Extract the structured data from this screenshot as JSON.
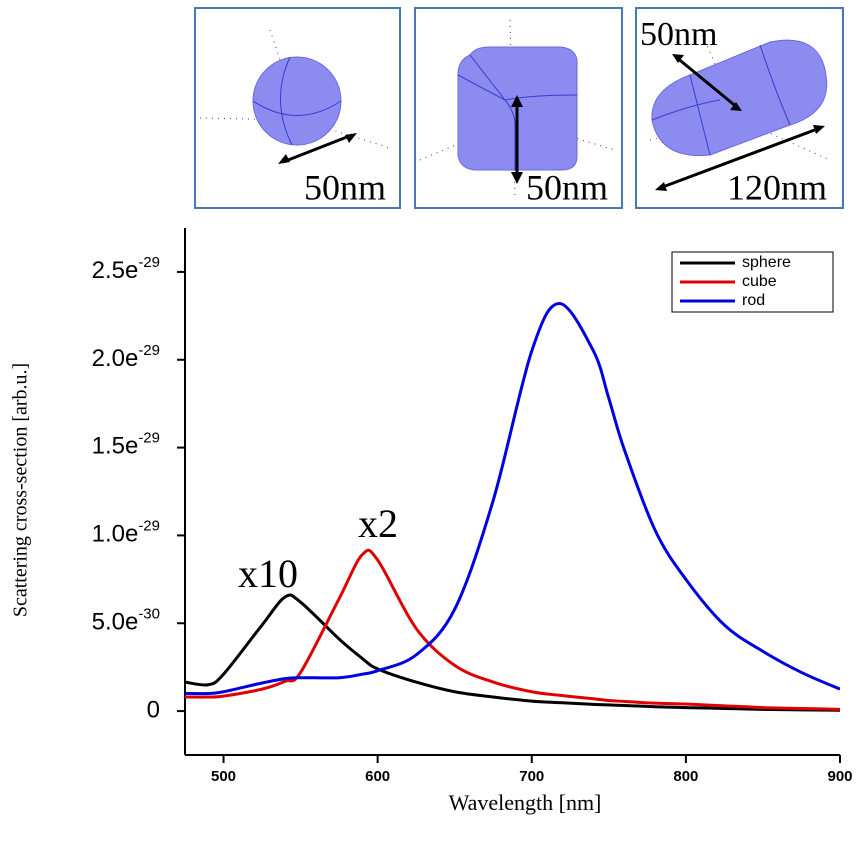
{
  "insets": [
    {
      "labels": [
        "50nm"
      ]
    },
    {
      "labels": [
        "50nm"
      ]
    },
    {
      "labels": [
        "50nm",
        "120nm"
      ]
    }
  ],
  "chart_data": {
    "type": "line",
    "x_label": "Wavelength [nm]",
    "y_label": "Scattering cross-section [arb.u.]",
    "annotations": [
      "x10",
      "x2"
    ],
    "x": [
      475,
      490,
      500,
      525,
      540,
      550,
      575,
      590,
      600,
      625,
      650,
      675,
      700,
      718,
      740,
      750,
      760,
      780,
      800,
      825,
      850,
      875,
      900
    ],
    "series": [
      {
        "name": "sphere",
        "color": "#000000",
        "values": [
          1.65e-30,
          1.5e-30,
          2.1e-30,
          4.9e-30,
          6.5e-30,
          6.2e-30,
          4.1e-30,
          3e-30,
          2.4e-30,
          1.65e-30,
          1.1e-30,
          8e-31,
          5.7e-31,
          4.8e-31,
          3.8e-31,
          3.5e-31,
          3.2e-31,
          2.5e-31,
          2e-31,
          1.5e-31,
          1e-31,
          7e-32,
          5e-32
        ]
      },
      {
        "name": "cube",
        "color": "#e00000",
        "values": [
          8e-31,
          8e-31,
          8.5e-31,
          1.25e-30,
          1.7e-30,
          2.2e-30,
          6.4e-30,
          8.9e-30,
          8.6e-30,
          4.7e-30,
          2.6e-30,
          1.65e-30,
          1.1e-30,
          9e-31,
          7e-31,
          6e-31,
          5.5e-31,
          4.5e-31,
          4e-31,
          3e-31,
          2e-31,
          1.5e-31,
          1e-31
        ]
      },
      {
        "name": "rod",
        "color": "#0000e0",
        "values": [
          1e-30,
          1e-30,
          1.1e-30,
          1.6e-30,
          1.85e-30,
          1.9e-30,
          1.9e-30,
          2.1e-30,
          2.3e-30,
          3.2e-30,
          5.8e-30,
          1.2e-29,
          2.05e-29,
          2.32e-29,
          2.05e-29,
          1.78e-29,
          1.49e-29,
          1.03e-29,
          7.5e-30,
          4.9e-30,
          3.4e-30,
          2.2e-30,
          1.25e-30
        ]
      }
    ],
    "xlim": [
      475,
      900
    ],
    "xticks": [
      500,
      600,
      700,
      800,
      900
    ],
    "ylim": [
      -2.5e-30,
      2.75e-29
    ],
    "yticks": [
      0,
      {
        "value": 5e-30,
        "label": "5.0e-30"
      },
      {
        "value": 1e-29,
        "label": "1.0e-29"
      },
      {
        "value": 1.5e-29,
        "label": "1.5e-29"
      },
      {
        "value": 2e-29,
        "label": "2.0e-29"
      },
      {
        "value": 2.5e-29,
        "label": "2.5e-29"
      }
    ],
    "legend": "upper right"
  }
}
